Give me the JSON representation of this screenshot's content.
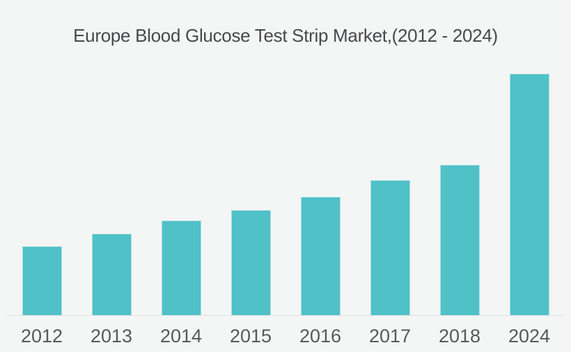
{
  "chart_data": {
    "type": "bar",
    "title": "Europe Blood Glucose Test Strip Market,(2012 - 2024)",
    "categories": [
      "2012",
      "2013",
      "2014",
      "2015",
      "2016",
      "2017",
      "2018",
      "2024"
    ],
    "values": [
      28.5,
      33.7,
      39.2,
      43.5,
      49.0,
      55.9,
      62.2,
      100.0
    ],
    "xlabel": "",
    "ylabel": "",
    "ylim": [
      0,
      100
    ],
    "grid": false,
    "legend": false,
    "value_axis_shown": false,
    "bar_color": "#4fc1c7",
    "bar_edge_color": "#a9dfe3",
    "background_color": "#f4f5f5",
    "axis_line_color": "#e0e1e1",
    "title_color": "#49494b",
    "tick_label_color": "#59595b"
  }
}
